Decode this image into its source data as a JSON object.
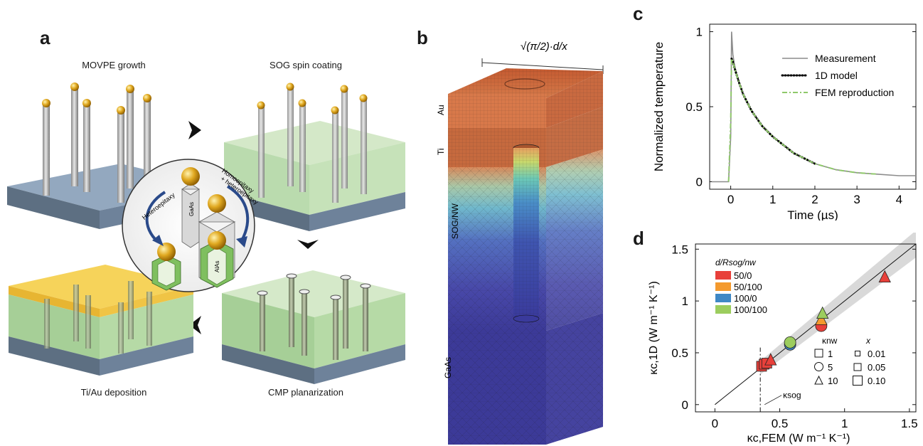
{
  "panels": {
    "a": {
      "letter": "a",
      "steps": [
        "MOVPE growth",
        "SOG spin coating",
        "Ti/Au deposition",
        "CMP planarization"
      ],
      "inset_labels": {
        "heteroepitaxy": "Heteroepitaxy",
        "homoepitaxy_1": "Homoepitaxy",
        "homoepitaxy_2": "+ heteroepitaxy",
        "gaas": "GaAs",
        "alas": "AlAs"
      }
    },
    "b": {
      "letter": "b",
      "dimension_label": "√(π/2)·d/x",
      "layers": [
        "Au",
        "Ti",
        "SOG/NW",
        "GaAs"
      ]
    },
    "c": {
      "letter": "c"
    },
    "d": {
      "letter": "d"
    }
  },
  "colors": {
    "substrate_blue": "#7d93ab",
    "sog_green": "#b9dcaa",
    "gold_film": "#f2c94c",
    "nanowire_grey": "#b0b0b0",
    "meas_grey": "#8c8c8c",
    "model_black": "#000000",
    "fem_green": "#8fc96a",
    "red": "#e8403a",
    "orange": "#f49a2e",
    "blue": "#3f88c5",
    "green": "#9ccd5e"
  },
  "chart_data": [
    {
      "panel": "c",
      "type": "line",
      "xlabel": "Time (µs)",
      "ylabel": "Normalized temperature",
      "xlim": [
        -0.5,
        4.4
      ],
      "ylim": [
        -0.05,
        1.05
      ],
      "xticks": [
        0,
        1,
        2,
        3,
        4
      ],
      "yticks": [
        0,
        0.5,
        1
      ],
      "xtick_labels": [
        "0",
        "1",
        "2",
        "3",
        "4"
      ],
      "ytick_labels": [
        "0",
        "0.5",
        "1"
      ],
      "legend_position": "top-right",
      "series": [
        {
          "name": "Measurement",
          "style": "solid-grey",
          "x": [
            -0.45,
            -0.2,
            -0.05,
            0.0,
            0.02,
            0.05,
            0.1,
            0.2,
            0.3,
            0.5,
            0.75,
            1.0,
            1.5,
            2.0,
            2.5,
            3.0,
            3.5,
            4.0,
            4.4
          ],
          "y": [
            0.0,
            0.0,
            0.0,
            0.3,
            1.0,
            0.85,
            0.76,
            0.66,
            0.58,
            0.47,
            0.37,
            0.3,
            0.19,
            0.12,
            0.08,
            0.06,
            0.05,
            0.04,
            0.04
          ]
        },
        {
          "name": "1D model",
          "style": "dotted-black",
          "x": [
            0.02,
            0.05,
            0.1,
            0.2,
            0.3,
            0.5,
            0.75,
            1.0,
            1.5,
            2.0
          ],
          "y": [
            0.82,
            0.8,
            0.75,
            0.66,
            0.58,
            0.47,
            0.37,
            0.3,
            0.19,
            0.12
          ]
        },
        {
          "name": "FEM reproduction",
          "style": "dashdot-green",
          "x": [
            -0.05,
            0.0,
            0.02,
            0.05,
            0.1,
            0.2,
            0.3,
            0.5,
            0.75,
            1.0,
            1.5,
            2.0,
            2.5,
            3.0,
            3.5
          ],
          "y": [
            0.0,
            0.4,
            0.82,
            0.8,
            0.75,
            0.66,
            0.58,
            0.47,
            0.37,
            0.3,
            0.19,
            0.12,
            0.08,
            0.06,
            0.05
          ]
        }
      ]
    },
    {
      "panel": "d",
      "type": "scatter",
      "xlabel": "κc,FEM (W m⁻¹ K⁻¹)",
      "ylabel": "κc,1D (W m⁻¹ K⁻¹)",
      "xlim": [
        -0.15,
        1.55
      ],
      "ylim": [
        -0.07,
        1.55
      ],
      "xticks": [
        0,
        0.5,
        1,
        1.5
      ],
      "yticks": [
        0,
        0.5,
        1,
        1.5
      ],
      "xtick_labels": [
        "0",
        "0.5",
        "1",
        "1.5"
      ],
      "ytick_labels": [
        "0",
        "0.5",
        "1",
        "1.5"
      ],
      "legend_title": "d/Rsog/nw",
      "legend_position": "top-left",
      "legend": [
        {
          "label": "50/0",
          "color": "#e8403a"
        },
        {
          "label": "50/100",
          "color": "#f49a2e"
        },
        {
          "label": "100/0",
          "color": "#3f88c5"
        },
        {
          "label": "100/100",
          "color": "#9ccd5e"
        }
      ],
      "marker_legend_knw": {
        "title": "κnw",
        "items": [
          {
            "shape": "square",
            "label": "1"
          },
          {
            "shape": "circle",
            "label": "5"
          },
          {
            "shape": "triangle",
            "label": "10"
          }
        ]
      },
      "marker_legend_x": {
        "title": "x",
        "items": [
          "0.01",
          "0.05",
          "0.10"
        ]
      },
      "annotation": {
        "text": "κsog",
        "x": 0.35
      },
      "identity_line": true,
      "points": [
        {
          "x": 0.36,
          "y": 0.37,
          "color": "#e8403a",
          "shape": "square"
        },
        {
          "x": 0.38,
          "y": 0.39,
          "color": "#e8403a",
          "shape": "square"
        },
        {
          "x": 0.4,
          "y": 0.4,
          "color": "#e8403a",
          "shape": "square"
        },
        {
          "x": 0.43,
          "y": 0.43,
          "color": "#e8403a",
          "shape": "triangle"
        },
        {
          "x": 0.58,
          "y": 0.58,
          "color": "#3f88c5",
          "shape": "circle"
        },
        {
          "x": 0.58,
          "y": 0.6,
          "color": "#9ccd5e",
          "shape": "circle"
        },
        {
          "x": 0.82,
          "y": 0.76,
          "color": "#e8403a",
          "shape": "circle"
        },
        {
          "x": 0.82,
          "y": 0.82,
          "color": "#f49a2e",
          "shape": "triangle"
        },
        {
          "x": 0.83,
          "y": 0.88,
          "color": "#9ccd5e",
          "shape": "triangle"
        },
        {
          "x": 1.31,
          "y": 1.23,
          "color": "#e8403a",
          "shape": "triangle"
        }
      ]
    }
  ]
}
